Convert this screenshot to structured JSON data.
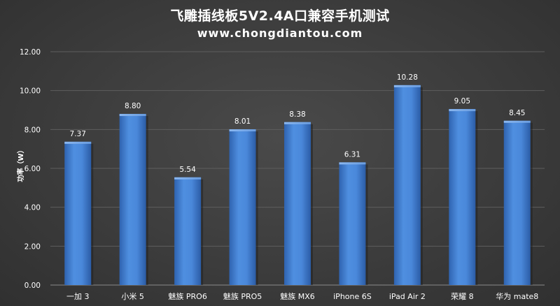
{
  "chart_data": {
    "type": "bar",
    "title": "飞雕插线板5V2.4A口兼容手机测试",
    "subtitle": "www.chongdiantou.com",
    "ylabel": "功率（W）",
    "xlabel": "",
    "ylim": [
      0,
      12
    ],
    "yticks": [
      "0.00",
      "2.00",
      "4.00",
      "6.00",
      "8.00",
      "10.00",
      "12.00"
    ],
    "grid": true,
    "bar_color": "#4a86d8",
    "categories": [
      "一加 3",
      "小米 5",
      "魅族 PRO6",
      "魅族 PRO5",
      "魅族 MX6",
      "iPhone 6S",
      "iPad Air 2",
      "荣耀 8",
      "华为 mate8"
    ],
    "values": [
      7.37,
      8.8,
      5.54,
      8.01,
      8.38,
      6.31,
      10.28,
      9.05,
      8.45
    ],
    "value_labels": [
      "7.37",
      "8.80",
      "5.54",
      "8.01",
      "8.38",
      "6.31",
      "10.28",
      "9.05",
      "8.45"
    ]
  }
}
